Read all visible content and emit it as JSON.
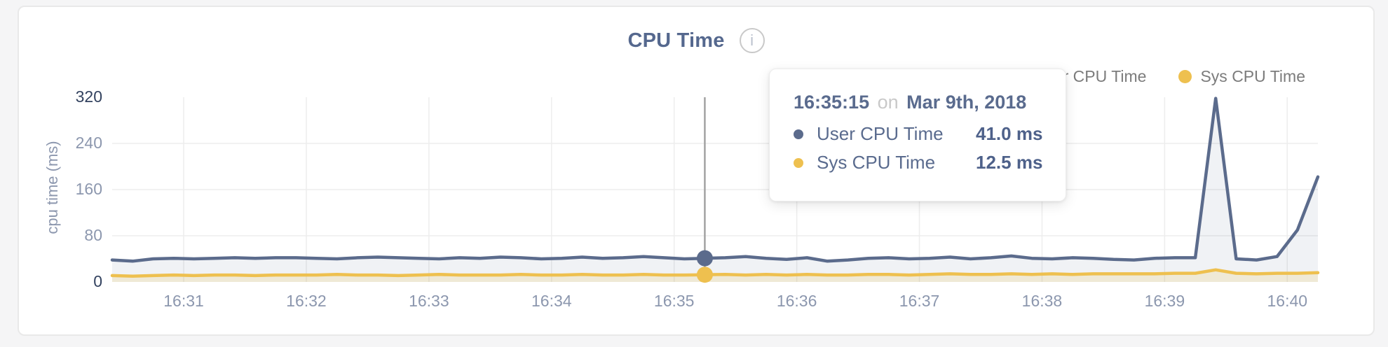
{
  "header": {
    "title": "CPU Time",
    "info_glyph": "i"
  },
  "legend": [
    {
      "label": "User CPU Time",
      "color": "#5b6b8c"
    },
    {
      "label": "Sys CPU Time",
      "color": "#eec04f"
    }
  ],
  "tooltip": {
    "time": "16:35:15",
    "on_word": "on",
    "date": "Mar 9th, 2018",
    "rows": [
      {
        "label": "User CPU Time",
        "value": "41.0 ms",
        "color": "#5b6b8c"
      },
      {
        "label": "Sys CPU Time",
        "value": "12.5 ms",
        "color": "#eec04f"
      }
    ]
  },
  "chart_data": {
    "type": "area",
    "title": "CPU Time",
    "ylabel": "cpu time (ms)",
    "ylim": [
      0,
      320
    ],
    "y_ticks": [
      0,
      80,
      160,
      240,
      320
    ],
    "x_tick_labels": [
      "16:31",
      "16:32",
      "16:33",
      "16:34",
      "16:35",
      "16:36",
      "16:37",
      "16:38",
      "16:39",
      "16:40"
    ],
    "x_domain": [
      "16:30:25",
      "16:40:15"
    ],
    "sample_interval_seconds": 10,
    "hover_index": 29,
    "hover_time": "16:35:15",
    "grid": true,
    "legend_position": "top-right",
    "crosshair_color": "#a3a3a3",
    "gridline_color": "#ededed",
    "series": [
      {
        "name": "User CPU Time",
        "color": "#5b6b8c",
        "fill": "rgba(91,107,140,0.09)",
        "hover_value": 41.0,
        "values": [
          38,
          36,
          40,
          41,
          40,
          41,
          42,
          41,
          42,
          42,
          41,
          40,
          42,
          43,
          42,
          41,
          40,
          42,
          41,
          43,
          42,
          40,
          41,
          43,
          41,
          42,
          44,
          42,
          40,
          41,
          42,
          44,
          41,
          39,
          42,
          36,
          38,
          41,
          42,
          40,
          41,
          43,
          40,
          42,
          45,
          41,
          40,
          42,
          41,
          39,
          38,
          41,
          42,
          42,
          318,
          40,
          38,
          44,
          90,
          182
        ]
      },
      {
        "name": "Sys CPU Time",
        "color": "#eec04f",
        "fill": "rgba(238,192,80,0.18)",
        "hover_value": 12.5,
        "values": [
          11,
          10,
          11,
          12,
          11,
          12,
          12,
          11,
          12,
          12,
          12,
          13,
          12,
          12,
          11,
          12,
          13,
          12,
          12,
          12,
          13,
          12,
          12,
          13,
          12,
          12,
          13,
          12,
          12,
          12.5,
          13,
          12,
          13,
          12,
          13,
          12,
          12,
          13,
          13,
          12,
          13,
          14,
          13,
          13,
          14,
          13,
          14,
          13,
          14,
          14,
          14,
          14,
          15,
          15,
          21,
          15,
          14,
          15,
          15,
          16
        ]
      }
    ]
  }
}
